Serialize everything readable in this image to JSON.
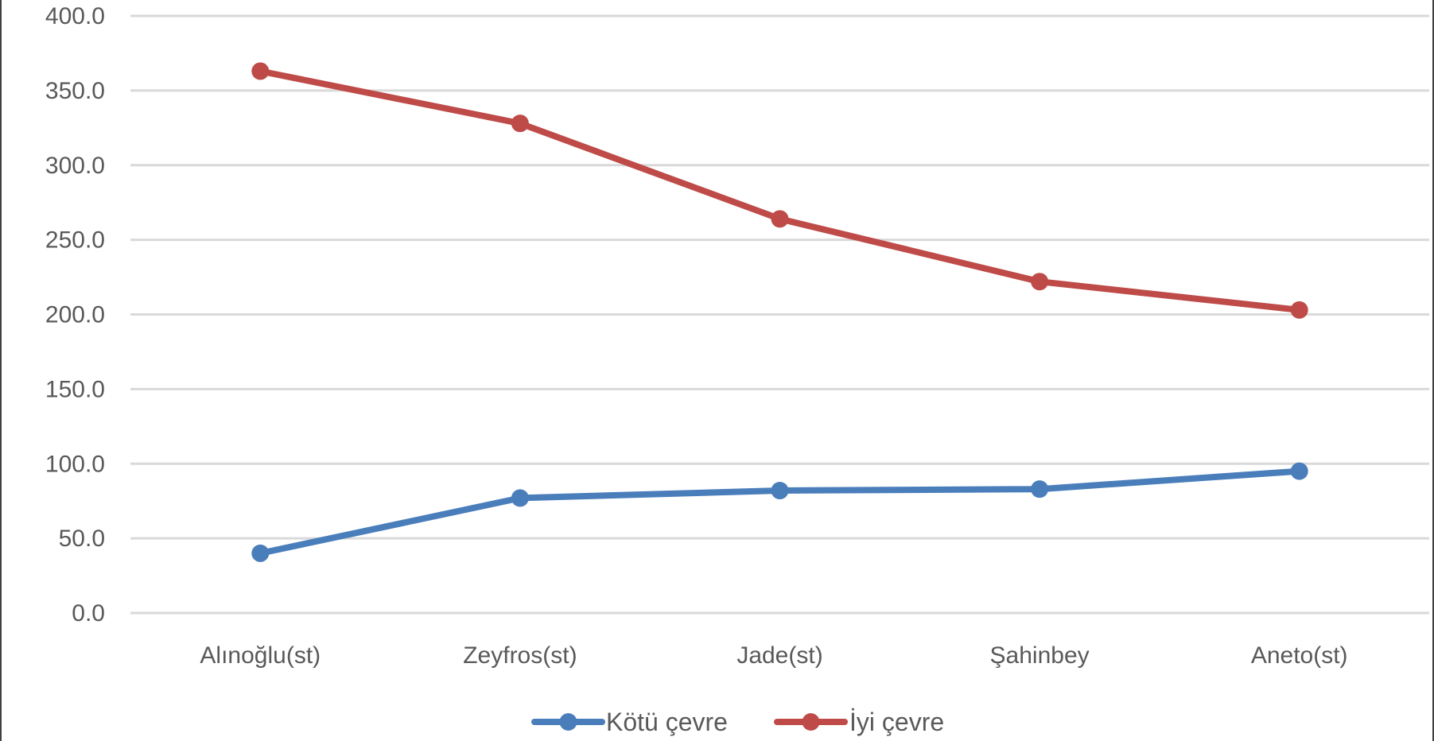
{
  "chart_data": {
    "type": "line",
    "categories": [
      "Alınoğlu(st)",
      "Zeyfros(st)",
      "Jade(st)",
      "Şahinbey",
      "Aneto(st)"
    ],
    "series": [
      {
        "name": "Kötü çevre",
        "color": "#4A7EBB",
        "values": [
          40.0,
          77.0,
          82.0,
          83.0,
          95.0
        ]
      },
      {
        "name": "İyi çevre",
        "color": "#BE4B48",
        "values": [
          363.0,
          328.0,
          264.0,
          222.0,
          203.0
        ]
      }
    ],
    "ylim": [
      0,
      400
    ],
    "yticks": [
      0,
      50,
      100,
      150,
      200,
      250,
      300,
      350,
      400
    ],
    "ytick_labels": [
      "0.0",
      "50.0",
      "100.0",
      "150.0",
      "200.0",
      "250.0",
      "300.0",
      "350.0",
      "400.0"
    ],
    "grid": true,
    "legend": "bottom"
  }
}
